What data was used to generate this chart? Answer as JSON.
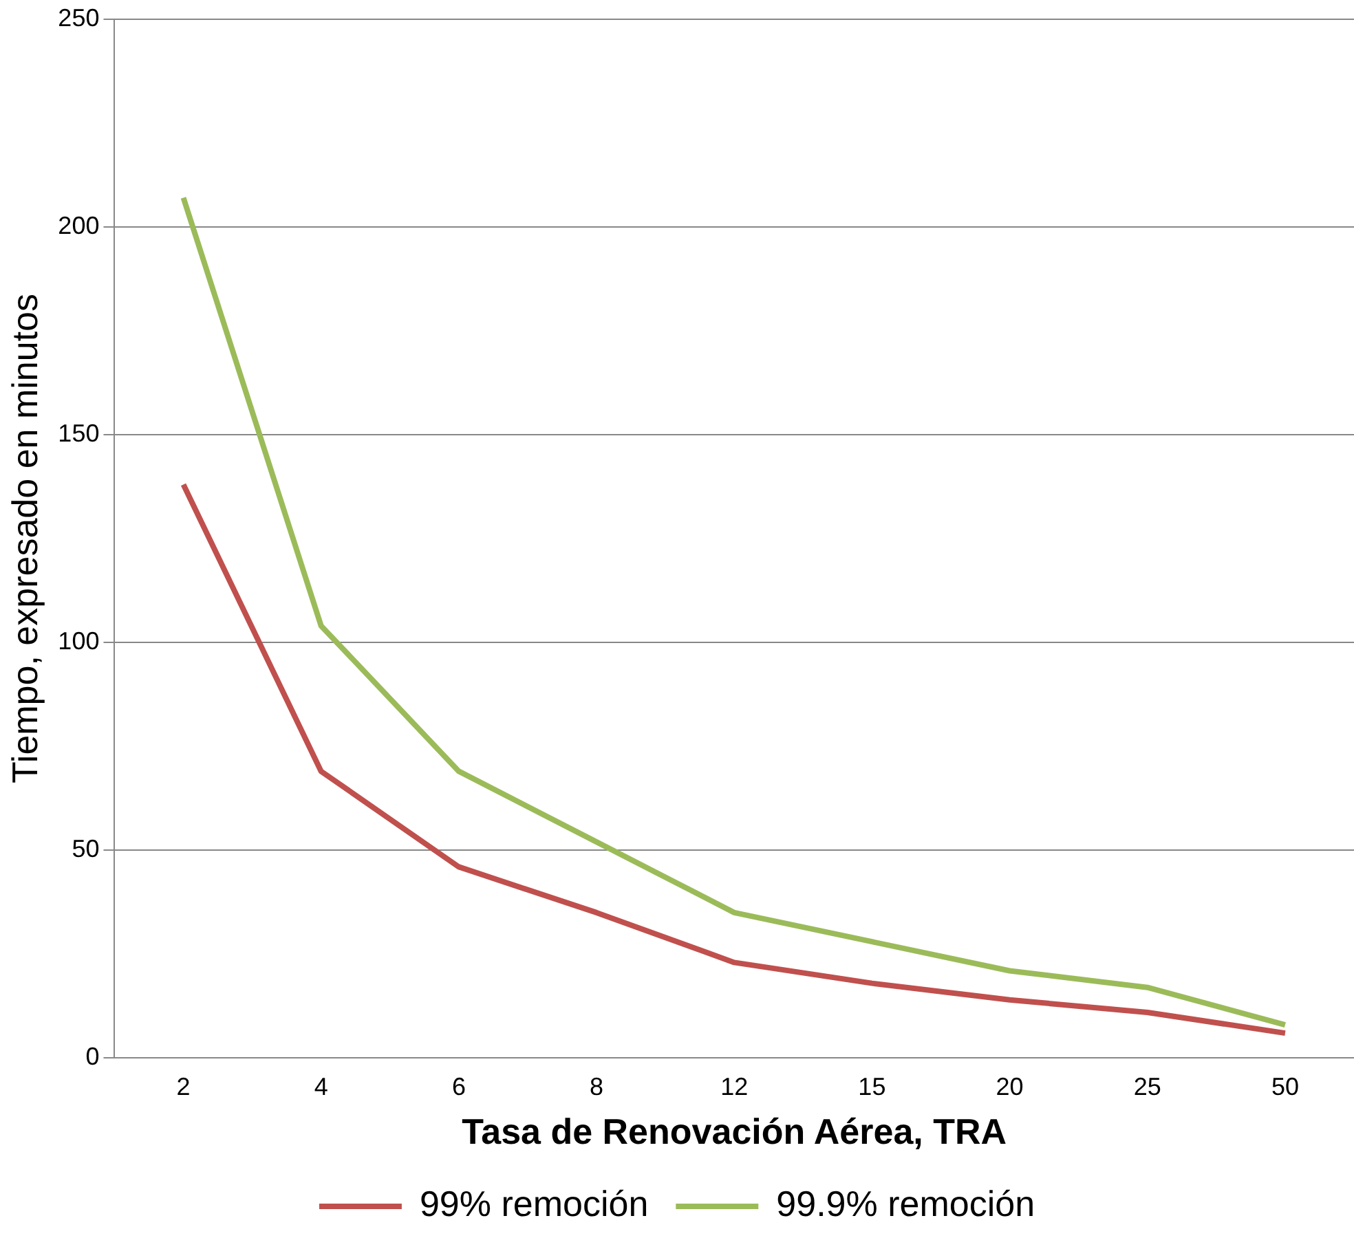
{
  "chart_data": {
    "type": "line",
    "xlabel": "Tasa de Renovación Aérea, TRA",
    "ylabel": "Tiempo, expresado en minutos",
    "categories": [
      "2",
      "4",
      "6",
      "8",
      "12",
      "15",
      "20",
      "25",
      "50"
    ],
    "series": [
      {
        "name": "99% remoción",
        "color": "#c0504d",
        "values": [
          138,
          69,
          46,
          35,
          23,
          18,
          14,
          11,
          6
        ]
      },
      {
        "name": "99.9% remoción",
        "color": "#9bbb59",
        "values": [
          207,
          104,
          69,
          52,
          35,
          28,
          21,
          17,
          8
        ]
      }
    ],
    "ylim": [
      0,
      250
    ],
    "yticks": [
      0,
      50,
      100,
      150,
      200,
      250
    ],
    "grid": "y",
    "legend": "bottom",
    "marker": "none",
    "line_style": "solid"
  }
}
